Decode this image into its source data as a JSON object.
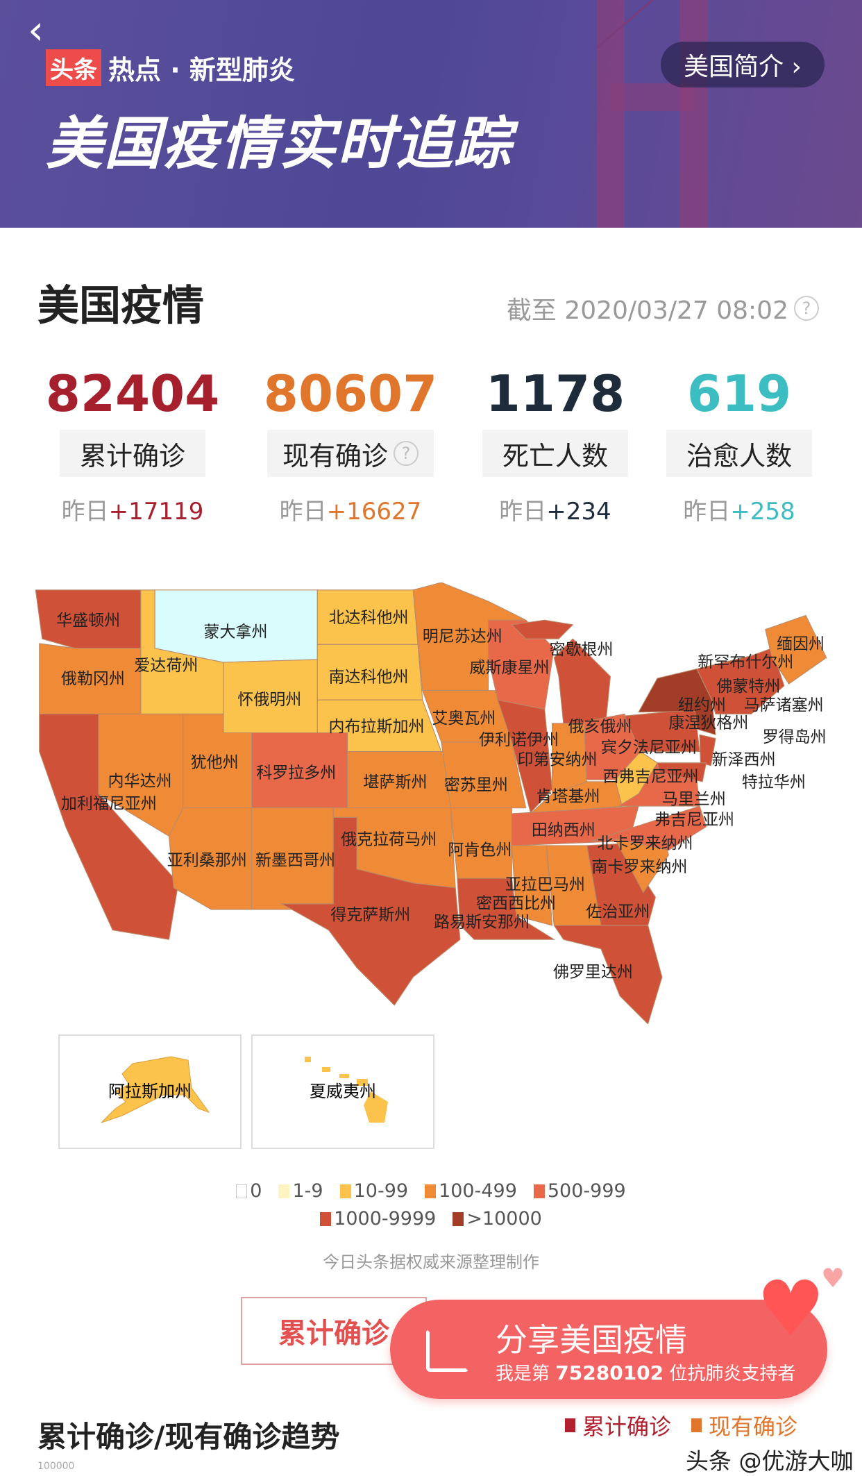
{
  "header": {
    "back_icon": "chevron-left-icon",
    "brand_tag": "头条",
    "section": "热点 · 新型肺炎",
    "intro_button": "美国简介 ›",
    "title": "美国疫情实时追踪"
  },
  "overview": {
    "title": "美国疫情",
    "timestamp": "截至 2020/03/27 08:02",
    "stats": [
      {
        "value": "82404",
        "label": "累计确诊",
        "y_prefix": "昨日",
        "delta": "+17119",
        "color": "#a61f2d",
        "help": false
      },
      {
        "value": "80607",
        "label": "现有确诊",
        "y_prefix": "昨日",
        "delta": "+16627",
        "color": "#e0762b",
        "help": true
      },
      {
        "value": "1178",
        "label": "死亡人数",
        "y_prefix": "昨日",
        "delta": "+234",
        "color": "#1d2b3b",
        "help": false
      },
      {
        "value": "619",
        "label": "治愈人数",
        "y_prefix": "昨日",
        "delta": "+258",
        "color": "#3cbdc1",
        "help": false
      }
    ]
  },
  "colors": {
    "0": "#ffffff",
    "1-9": "#fff3c2",
    "10-99": "#fbc24c",
    "100-499": "#ef8a36",
    "500-999": "#e8684a",
    "1000-9999": "#cf5138",
    "gt10000": "#a23d28",
    "selected": "#d9fcfc"
  },
  "map": {
    "states": [
      "华盛顿州",
      "蒙大拿州",
      "北达科他州",
      "明尼苏达州",
      "密歇根州",
      "缅因州",
      "俄勒冈州",
      "爱达荷州",
      "南达科他州",
      "威斯康星州",
      "新罕布什尔州",
      "佛蒙特州",
      "怀俄明州",
      "内布拉斯加州",
      "艾奥瓦州",
      "纽约州",
      "马萨诸塞州",
      "伊利诺伊州",
      "俄亥俄州",
      "康涅狄格州",
      "罗得岛州",
      "宾夕法尼亚州",
      "印第安纳州",
      "新泽西州",
      "犹他州",
      "科罗拉多州",
      "堪萨斯州",
      "密苏里州",
      "西弗吉尼亚州",
      "特拉华州",
      "内华达州",
      "肯塔基州",
      "马里兰州",
      "加利福尼亚州",
      "弗吉尼亚州",
      "田纳西州",
      "俄克拉荷马州",
      "北卡罗来纳州",
      "阿肯色州",
      "亚利桑那州",
      "新墨西哥州",
      "南卡罗来纳州",
      "亚拉巴马州",
      "密西西比州",
      "佐治亚州",
      "得克萨斯州",
      "路易斯安那州",
      "佛罗里达州"
    ],
    "alaska": "阿拉斯加州",
    "hawaii": "夏威夷州"
  },
  "legend": [
    "0",
    "1-9",
    "10-99",
    "100-499",
    "500-999",
    "1000-9999",
    ">10000"
  ],
  "source": "今日头条据权威来源整理制作",
  "actions": {
    "tab": "累计确诊",
    "share_title": "分享美国疫情",
    "share_sub_pre": "我是第",
    "share_count": "75280102",
    "share_sub_post": "位抗肺炎支持者"
  },
  "trend": {
    "title": "累计确诊/现有确诊趋势",
    "legend": [
      "累计确诊",
      "现有确诊"
    ],
    "axis_top": "100000"
  },
  "watermark": "头条 @优游大咖"
}
